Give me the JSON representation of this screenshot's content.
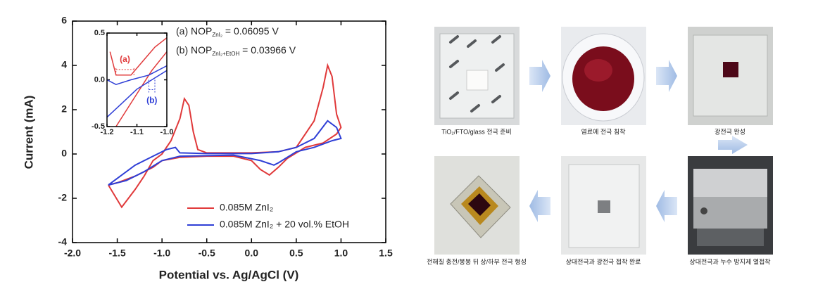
{
  "chart_data": [
    {
      "type": "line",
      "xlabel": "Potential vs. Ag/AgCl (V)",
      "ylabel": "Current (mA)",
      "xlim": [
        -2.0,
        1.5
      ],
      "ylim": [
        -4,
        6
      ],
      "xticks": [
        {
          "value": -2.0,
          "label": "-2.0"
        },
        -1.5,
        {
          "value": -1.0,
          "label": "-1.0"
        },
        -0.5,
        {
          "value": 0.0,
          "label": "0.0"
        },
        0.5,
        {
          "value": 1.0,
          "label": "1.0"
        },
        1.5
      ],
      "yticks": [
        -4,
        -2,
        0,
        2,
        4,
        6
      ],
      "legend": "lower right",
      "series": [
        {
          "name": "0.085M ZnI₂",
          "color": "#e0393a",
          "x": [
            -1.6,
            -1.45,
            -1.3,
            -1.2,
            -1.1,
            -1.0,
            -0.9,
            -0.8,
            -0.75,
            -0.7,
            -0.65,
            -0.6,
            -0.5,
            0.0,
            0.3,
            0.5,
            0.7,
            0.8,
            0.85,
            0.9,
            0.95,
            1.0,
            0.95,
            0.8,
            0.6,
            0.4,
            0.3,
            0.2,
            0.1,
            0.0,
            -0.2,
            -0.5,
            -0.8,
            -1.0,
            -1.1,
            -1.3,
            -1.5,
            -1.6
          ],
          "values": [
            -1.4,
            -2.4,
            -1.6,
            -1.0,
            -0.3,
            0.0,
            0.6,
            1.6,
            2.5,
            2.2,
            1.0,
            0.2,
            0.05,
            0.05,
            0.1,
            0.3,
            1.5,
            3.0,
            4.0,
            3.5,
            1.8,
            1.2,
            0.9,
            0.5,
            0.3,
            -0.2,
            -0.6,
            -0.95,
            -0.7,
            -0.3,
            -0.1,
            -0.1,
            -0.15,
            -0.3,
            -0.6,
            -1.0,
            -1.3,
            -1.4
          ]
        },
        {
          "name": "0.085M ZnI₂ + 20 vol.% EtOH",
          "color": "#2f3fd6",
          "x": [
            -1.6,
            -1.3,
            -1.1,
            -0.95,
            -0.85,
            -0.8,
            -0.5,
            0.0,
            0.3,
            0.5,
            0.7,
            0.85,
            0.95,
            1.0,
            0.9,
            0.7,
            0.5,
            0.3,
            0.25,
            0.1,
            -0.2,
            -0.8,
            -1.0,
            -1.2,
            -1.4,
            -1.6
          ],
          "values": [
            -1.4,
            -0.5,
            -0.1,
            0.2,
            0.3,
            0.05,
            0.02,
            0.02,
            0.1,
            0.3,
            0.7,
            1.5,
            1.2,
            0.7,
            0.6,
            0.3,
            0.1,
            -0.4,
            -0.5,
            -0.3,
            -0.05,
            -0.1,
            -0.3,
            -0.8,
            -1.2,
            -1.4
          ]
        }
      ],
      "annotations": [
        {
          "text": "(a) NOP",
          "subscript": "ZnI₂",
          "suffix": " = 0.06095 V"
        },
        {
          "text": "(b) NOP",
          "subscript": "ZnI₂+EtOH",
          "suffix": " = 0.03966 V"
        }
      ]
    },
    {
      "type": "line",
      "xlim": [
        -1.2,
        -1.0
      ],
      "ylim": [
        -0.5,
        0.5
      ],
      "xticks": [
        -1.2,
        -1.1,
        {
          "value": -1.0,
          "label": "-1.0"
        }
      ],
      "yticks": [
        -0.5,
        {
          "value": 0.0,
          "label": "0.0"
        },
        0.5
      ],
      "series": [
        {
          "color": "#e0393a",
          "x": [
            -1.19,
            -1.17,
            -1.15,
            -1.12,
            -1.08,
            -1.04,
            -1.0,
            null,
            -1.17,
            -1.1,
            -1.05,
            -1.0
          ],
          "values": [
            0.3,
            0.05,
            0.05,
            0.05,
            0.2,
            0.35,
            0.45,
            null,
            -0.5,
            -0.15,
            0.1,
            0.3
          ]
        },
        {
          "color": "#2f3fd6",
          "x": [
            -1.2,
            -1.17,
            -1.12,
            -1.06,
            -1.0,
            null,
            -1.2,
            -1.15,
            -1.1,
            -1.05,
            -1.0
          ],
          "values": [
            0.0,
            -0.05,
            0.0,
            0.05,
            0.15,
            null,
            -0.4,
            -0.25,
            -0.1,
            0.0,
            0.1
          ]
        }
      ],
      "annotations": [
        {
          "text": "(a)",
          "color": "#e0393a"
        },
        {
          "text": "(b)",
          "color": "#2f3fd6"
        }
      ]
    }
  ],
  "process": {
    "steps": [
      "TiO₂/FTO/glass 전극 준비",
      "염료에 전극 침착",
      "광전극 완성",
      "상대전극과 누수 방지제 열접착",
      "상대전극과 광전극 접착 완료",
      "전해질 충전/봉봉 뒤 상/하부 전극 형성"
    ]
  }
}
